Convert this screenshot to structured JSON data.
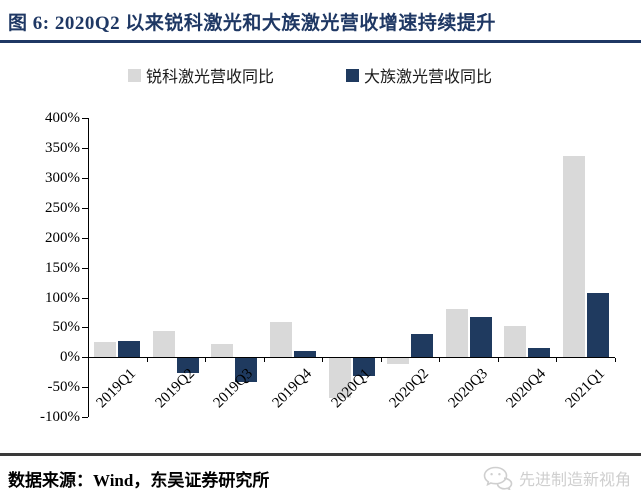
{
  "title": "图 6: 2020Q2 以来锐科激光和大族激光营收增速持续提升",
  "source_note": "数据来源：Wind，东吴证券研究所",
  "watermark": {
    "label": "先进制造新视角",
    "icon": "wechat-bubbles-icon",
    "color": "#cfcfcf"
  },
  "colors": {
    "title_navy": "#1f3864",
    "series_gray": "#d9d9d9",
    "series_navy": "#1f3a5f",
    "axis_black": "#000000",
    "footer_rule": "#3a3a3a"
  },
  "chart_data": {
    "type": "bar",
    "categories": [
      "2019Q1",
      "2019Q2",
      "2019Q3",
      "2019Q4",
      "2020Q1",
      "2020Q2",
      "2020Q3",
      "2020Q4",
      "2021Q1"
    ],
    "series": [
      {
        "name": "锐科激光营收同比",
        "color": "#d9d9d9",
        "values": [
          25,
          44,
          22,
          59,
          -67,
          -9,
          81,
          53,
          336
        ]
      },
      {
        "name": "大族激光营收同比",
        "color": "#1f3a5f",
        "values": [
          27,
          -25,
          -40,
          11,
          -29,
          39,
          67,
          16,
          108
        ]
      }
    ],
    "ylim": [
      -100,
      400
    ],
    "ytick_step": 50,
    "ytick_labels": [
      "400%",
      "350%",
      "300%",
      "250%",
      "200%",
      "150%",
      "100%",
      "50%",
      "0%",
      "-50%",
      "-100%"
    ],
    "legend_position": "top",
    "grid": false
  }
}
